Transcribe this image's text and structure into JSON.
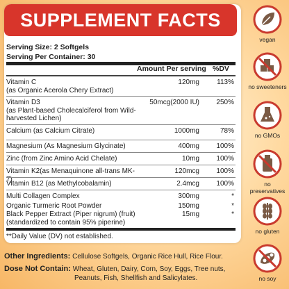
{
  "title": "SUPPLEMENT FACTS",
  "serving_size": "Serving Size:  2 Softgels",
  "servings_per_container": "Serving Per Container: 30",
  "col_amount": "Amount Per serving",
  "col_dv": "%DV",
  "rows": [
    {
      "name": "Vitamin C",
      "sub": "(as Organic Acerola Chery Extract)",
      "amount": "120mg",
      "dv": "113%"
    },
    {
      "name": "Vitamin D3",
      "sub": "(as Plant-based Cholecalciferol from Wild-harvested Lichen)",
      "amount": "50mcg(2000 IU)",
      "dv": "250%"
    },
    {
      "name": "Calcium (as Calcium Citrate)",
      "sub": "",
      "amount": "1000mg",
      "dv": "78%"
    },
    {
      "name": "Magnesium (As Magnesium Glycinate)",
      "sub": "",
      "amount": "400mg",
      "dv": "100%"
    },
    {
      "name": "Zinc (from Zinc Amino Acid Chelate)",
      "sub": "",
      "amount": "10mg",
      "dv": "100%"
    },
    {
      "name": "Vitamin K2(as Menaquinone all-trans MK-7)",
      "sub": "",
      "amount": "120mcg",
      "dv": "100%"
    },
    {
      "name": "Vitamin B12 (as Methylcobalamin)",
      "sub": "",
      "amount": "2.4mcg",
      "dv": "100%"
    },
    {
      "name": "Multi Collagen Complex",
      "sub": "",
      "amount": "300mg",
      "dv": "*"
    },
    {
      "name": "Organic Turmeric Root Powder",
      "sub": "",
      "amount": "150mg",
      "dv": "*"
    },
    {
      "name": "Black Pepper Extract (Piper nigrum) (fruit)",
      "sub": "(standardized to contain 95% piperine)",
      "amount": "15mg",
      "dv": "*"
    }
  ],
  "footnote": "**Daily Value  (DV) not established.",
  "other_label": "Other Ingredients:",
  "other_text": "Cellulose Softgels, Organic Rice Hull, Rice Flour.",
  "dnc_label": "Dose Not Contain:",
  "dnc_line1": "Wheat, Gluten, Dairy, Corn, Soy, Eggs, Tree nuts,",
  "dnc_line2": "Peanuts, Fish, Shellfish and Salicylates.",
  "icons": [
    {
      "icon": "leaf-icon",
      "label": "vegan"
    },
    {
      "icon": "sugar-cubes-icon",
      "label": "no sweeteners"
    },
    {
      "icon": "flask-icon",
      "label": "no GMOs"
    },
    {
      "icon": "bottle-icon",
      "label": "no preservatives"
    },
    {
      "icon": "wheat-icon",
      "label": "no gluten"
    },
    {
      "icon": "soybean-icon",
      "label": "no soy"
    }
  ],
  "colors": {
    "accent": "#d8352b",
    "icon_ring": "#c93a2e",
    "icon_fill": "#7a5a45"
  }
}
